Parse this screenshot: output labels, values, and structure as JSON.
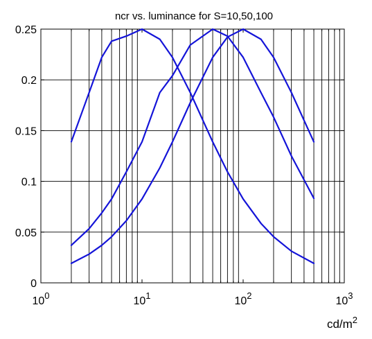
{
  "chart_data": {
    "type": "line",
    "title": "ncr vs. luminance for S=10,50,100",
    "xlabel": "cd/m",
    "xlabel_superscript": "2",
    "x_scale": "log",
    "xlim": [
      1,
      1000
    ],
    "ylim": [
      0,
      0.25
    ],
    "x_ticks": [
      {
        "base": "10",
        "exp": "0"
      },
      {
        "base": "10",
        "exp": "1"
      },
      {
        "base": "10",
        "exp": "2"
      },
      {
        "base": "10",
        "exp": "3"
      }
    ],
    "y_ticks": [
      "0",
      "0.05",
      "0.1",
      "0.15",
      "0.2",
      "0.25"
    ],
    "y_tick_values": [
      0,
      0.05,
      0.1,
      0.15,
      0.2,
      0.25
    ],
    "grid": "on",
    "legend": "none",
    "line_color": "#1414d8",
    "series": [
      {
        "x": [
          2,
          3,
          4,
          5,
          7,
          10,
          15,
          20,
          30,
          50,
          70,
          100,
          150,
          200,
          300,
          500
        ],
        "y": [
          0.139,
          0.1875,
          0.2222,
          0.2381,
          0.2431,
          0.25,
          0.24,
          0.2222,
          0.1875,
          0.1389,
          0.1094,
          0.0826,
          0.0586,
          0.0454,
          0.0312,
          0.0192
        ]
      },
      {
        "x": [
          2,
          3,
          4,
          5,
          7,
          10,
          15,
          20,
          30,
          50,
          70,
          100,
          150,
          200,
          300,
          500
        ],
        "y": [
          0.037,
          0.0534,
          0.0689,
          0.0826,
          0.1094,
          0.1389,
          0.1875,
          0.2041,
          0.2344,
          0.25,
          0.2431,
          0.2222,
          0.1875,
          0.1633,
          0.125,
          0.0833
        ]
      },
      {
        "x": [
          2,
          3,
          4,
          5,
          7,
          10,
          15,
          20,
          30,
          50,
          70,
          100,
          150,
          200,
          300,
          500
        ],
        "y": [
          0.0192,
          0.0283,
          0.037,
          0.0454,
          0.0612,
          0.0826,
          0.1133,
          0.1389,
          0.1775,
          0.2222,
          0.2422,
          0.25,
          0.24,
          0.2222,
          0.1875,
          0.1389
        ]
      }
    ]
  }
}
